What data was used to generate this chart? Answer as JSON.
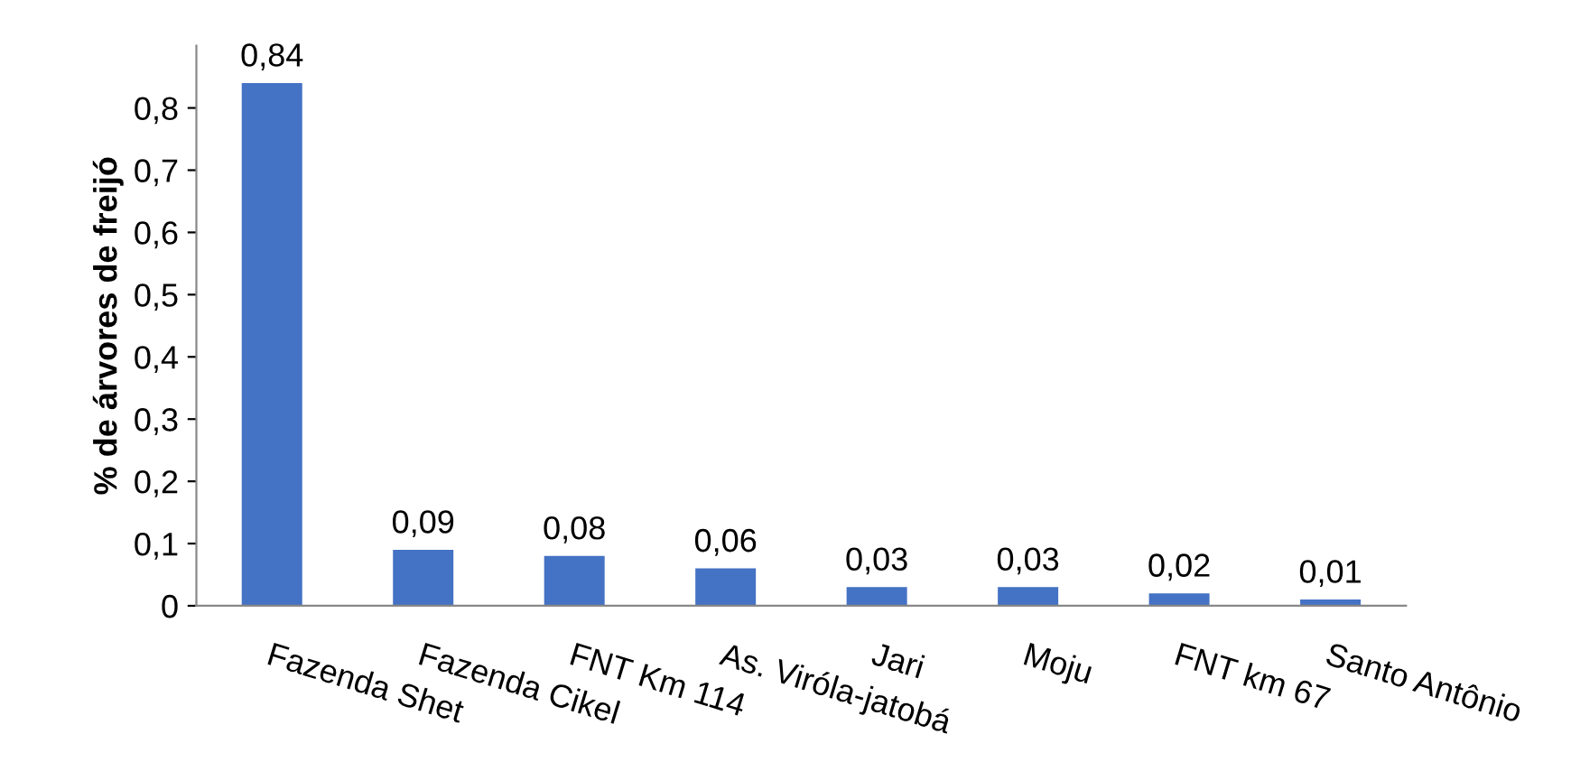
{
  "chart_data": {
    "type": "bar",
    "ylabel": "% de árvores de freijó",
    "categories": [
      "Fazenda Shet",
      "Fazenda Cikel",
      "FNT Km 114",
      "As. Viróla-jatobá",
      "Jari",
      "Moju",
      "FNT km 67",
      "Santo Antônio"
    ],
    "values": [
      0.84,
      0.09,
      0.08,
      0.06,
      0.03,
      0.03,
      0.02,
      0.01
    ],
    "value_labels": [
      "0,84",
      "0,09",
      "0,08",
      "0,06",
      "0,03",
      "0,03",
      "0,02",
      "0,01"
    ],
    "color": "#4472c4",
    "ylim": [
      0,
      0.9
    ],
    "yticks": [
      0,
      {
        "value": 0.1,
        "label": "0,1"
      },
      {
        "value": 0.2,
        "label": "0,2"
      },
      {
        "value": 0.3,
        "label": "0,3"
      },
      {
        "value": 0.4,
        "label": "0,4"
      },
      {
        "value": 0.5,
        "label": "0,5"
      },
      {
        "value": 0.6,
        "label": "0,6"
      },
      {
        "value": 0.7,
        "label": "0,7"
      },
      {
        "value": 0.8,
        "label": "0,8"
      }
    ],
    "grid": false,
    "legend": false
  }
}
